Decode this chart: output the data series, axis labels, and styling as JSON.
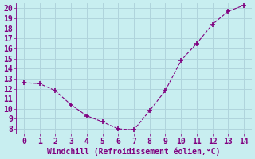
{
  "x": [
    0,
    1,
    2,
    3,
    4,
    5,
    6,
    7,
    8,
    9,
    10,
    11,
    12,
    13,
    14
  ],
  "y": [
    12.6,
    12.5,
    11.8,
    10.4,
    9.3,
    8.7,
    8.0,
    7.9,
    9.8,
    11.8,
    14.8,
    16.5,
    18.4,
    19.7,
    20.3
  ],
  "line_color": "#800080",
  "marker": "D",
  "marker_size": 2.5,
  "background_color": "#c8eef0",
  "grid_color": "#b0d4dc",
  "xlabel": "Windchill (Refroidissement éolien,°C)",
  "xlabel_color": "#800080",
  "tick_color": "#800080",
  "spine_color": "#800080",
  "xlim": [
    -0.5,
    14.5
  ],
  "ylim": [
    7.5,
    20.5
  ],
  "yticks": [
    8,
    9,
    10,
    11,
    12,
    13,
    14,
    15,
    16,
    17,
    18,
    19,
    20
  ],
  "xticks": [
    0,
    1,
    2,
    3,
    4,
    5,
    6,
    7,
    8,
    9,
    10,
    11,
    12,
    13,
    14
  ],
  "tick_fontsize": 7,
  "xlabel_fontsize": 7
}
